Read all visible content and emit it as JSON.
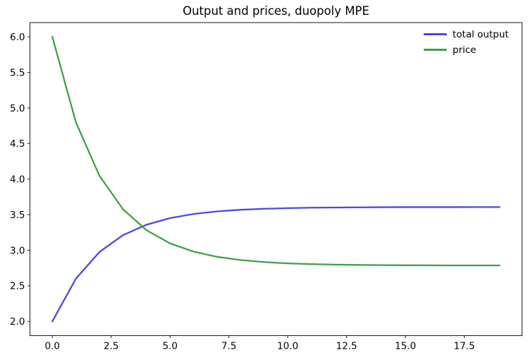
{
  "figure": {
    "title": "Output and prices, duopoly MPE",
    "background_color": "#ffffff",
    "spine_color": "#1a1a1a"
  },
  "chart_data": {
    "type": "line",
    "title": "Output and prices, duopoly MPE",
    "xlabel": "",
    "ylabel": "",
    "x": [
      0,
      1,
      2,
      3,
      4,
      5,
      6,
      7,
      8,
      9,
      10,
      11,
      12,
      13,
      14,
      15,
      16,
      17,
      18,
      19
    ],
    "series": [
      {
        "name": "total output",
        "color": "#4c48e0",
        "values": [
          2.0,
          2.6,
          2.976,
          3.212,
          3.359,
          3.452,
          3.51,
          3.546,
          3.569,
          3.583,
          3.592,
          3.598,
          3.601,
          3.603,
          3.605,
          3.606,
          3.606,
          3.606,
          3.607,
          3.607
        ]
      },
      {
        "name": "price",
        "color": "#3fa246",
        "values": [
          6.0,
          4.8,
          4.048,
          3.577,
          3.282,
          3.097,
          2.981,
          2.908,
          2.863,
          2.834,
          2.816,
          2.805,
          2.798,
          2.794,
          2.791,
          2.789,
          2.788,
          2.787,
          2.787,
          2.787
        ]
      }
    ],
    "xlim": [
      -0.95,
      19.95
    ],
    "ylim": [
      1.8,
      6.2
    ],
    "xticks": {
      "values": [
        0,
        2.5,
        5,
        7.5,
        10,
        12.5,
        15,
        17.5
      ],
      "labels": [
        "0.0",
        "2.5",
        "5.0",
        "7.5",
        "10.0",
        "12.5",
        "15.0",
        "17.5"
      ]
    },
    "yticks": {
      "values": [
        2.0,
        2.5,
        3.0,
        3.5,
        4.0,
        4.5,
        5.0,
        5.5,
        6.0
      ],
      "labels": [
        "2.0",
        "2.5",
        "3.0",
        "3.5",
        "4.0",
        "4.5",
        "5.0",
        "5.5",
        "6.0"
      ]
    },
    "grid": false,
    "legend": {
      "position": "upper right",
      "frame": false,
      "entries": [
        "total output",
        "price"
      ]
    },
    "line_width": 2.3
  }
}
